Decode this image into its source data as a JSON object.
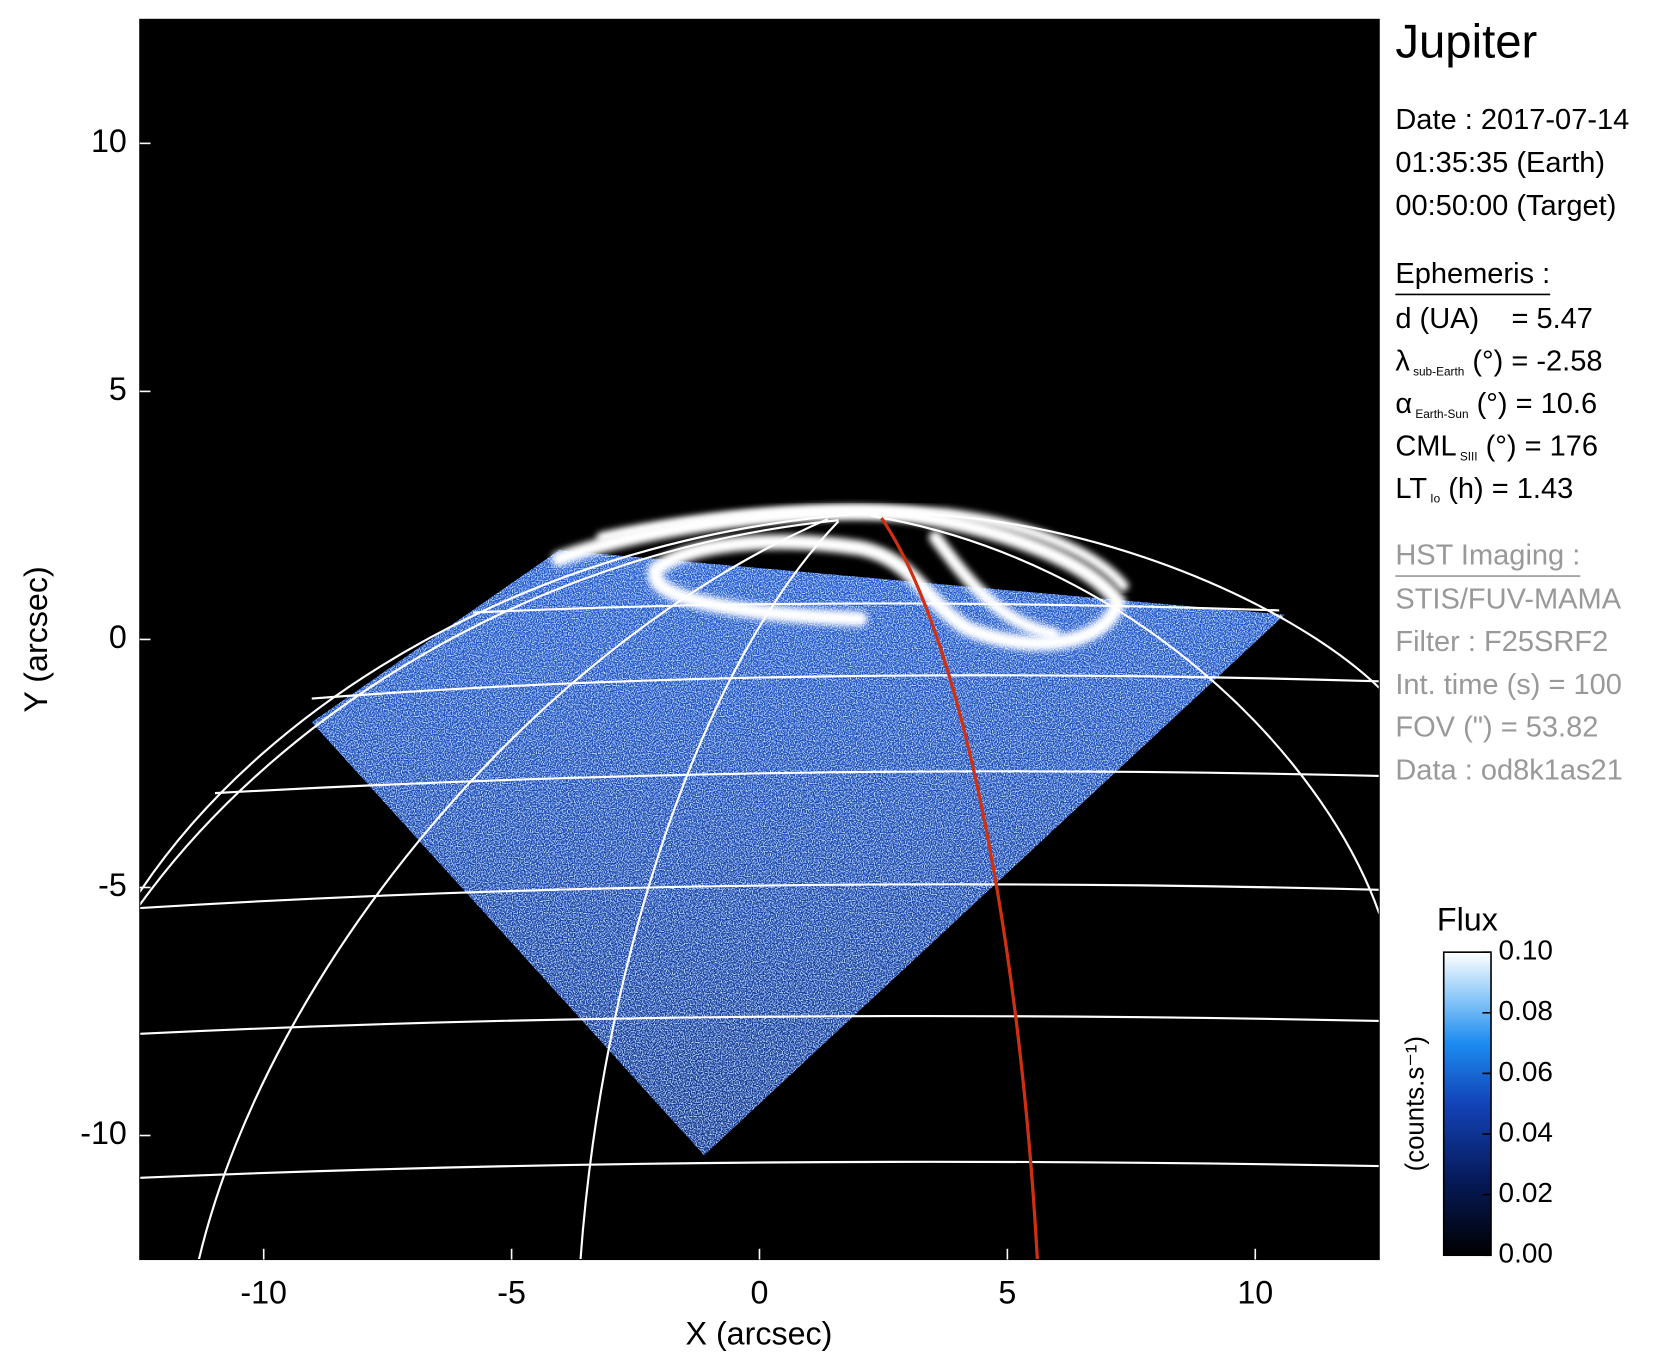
{
  "chart_data": {
    "type": "image",
    "title": "Jupiter",
    "xlabel": "X (arcsec)",
    "ylabel": "Y (arcsec)",
    "xlim": [
      -12.5,
      12.5
    ],
    "ylim": [
      -12.5,
      12.5
    ],
    "xticks": [
      -10,
      -5,
      0,
      5,
      10
    ],
    "yticks": [
      -10,
      -5,
      0,
      5,
      10
    ],
    "colorbar": {
      "title": "Flux",
      "label": "(counts.s⁻¹)",
      "lim": [
        0,
        0.1
      ],
      "ticks": [
        {
          "value": 0,
          "label": "0.00"
        },
        {
          "value": 0.02,
          "label": "0.02"
        },
        {
          "value": 0.04,
          "label": "0.04"
        },
        {
          "value": 0.06,
          "label": "0.06"
        },
        {
          "value": 0.08,
          "label": "0.08"
        },
        {
          "value": 0.1,
          "label": "0.10"
        }
      ]
    },
    "info": {
      "date_lines": [
        "Date : 2017-07-14",
        "01:35:35 (Earth)",
        "00:50:00 (Target)"
      ],
      "ephemeris_title": "Ephemeris :",
      "ephemeris": [
        {
          "text": "d (UA)    = 5.47"
        },
        {
          "symbol": "λ",
          "sub": "sub-Earth",
          "text": " (°) = -2.58"
        },
        {
          "symbol": "α",
          "sub": "Earth-Sun",
          "text": " (°) = 10.6"
        },
        {
          "symbol": "CML",
          "sub": "SIII",
          "text": " (°) = 176"
        },
        {
          "symbol": "LT",
          "sub": "Io",
          "text": " (h) = 1.43"
        }
      ],
      "hst_title": "HST Imaging :",
      "hst": [
        "STIS/FUV-MAMA",
        "Filter : F25SRF2",
        "Int. time (s) = 100",
        "FOV (\") = 53.82",
        "Data : od8k1as21"
      ]
    }
  }
}
